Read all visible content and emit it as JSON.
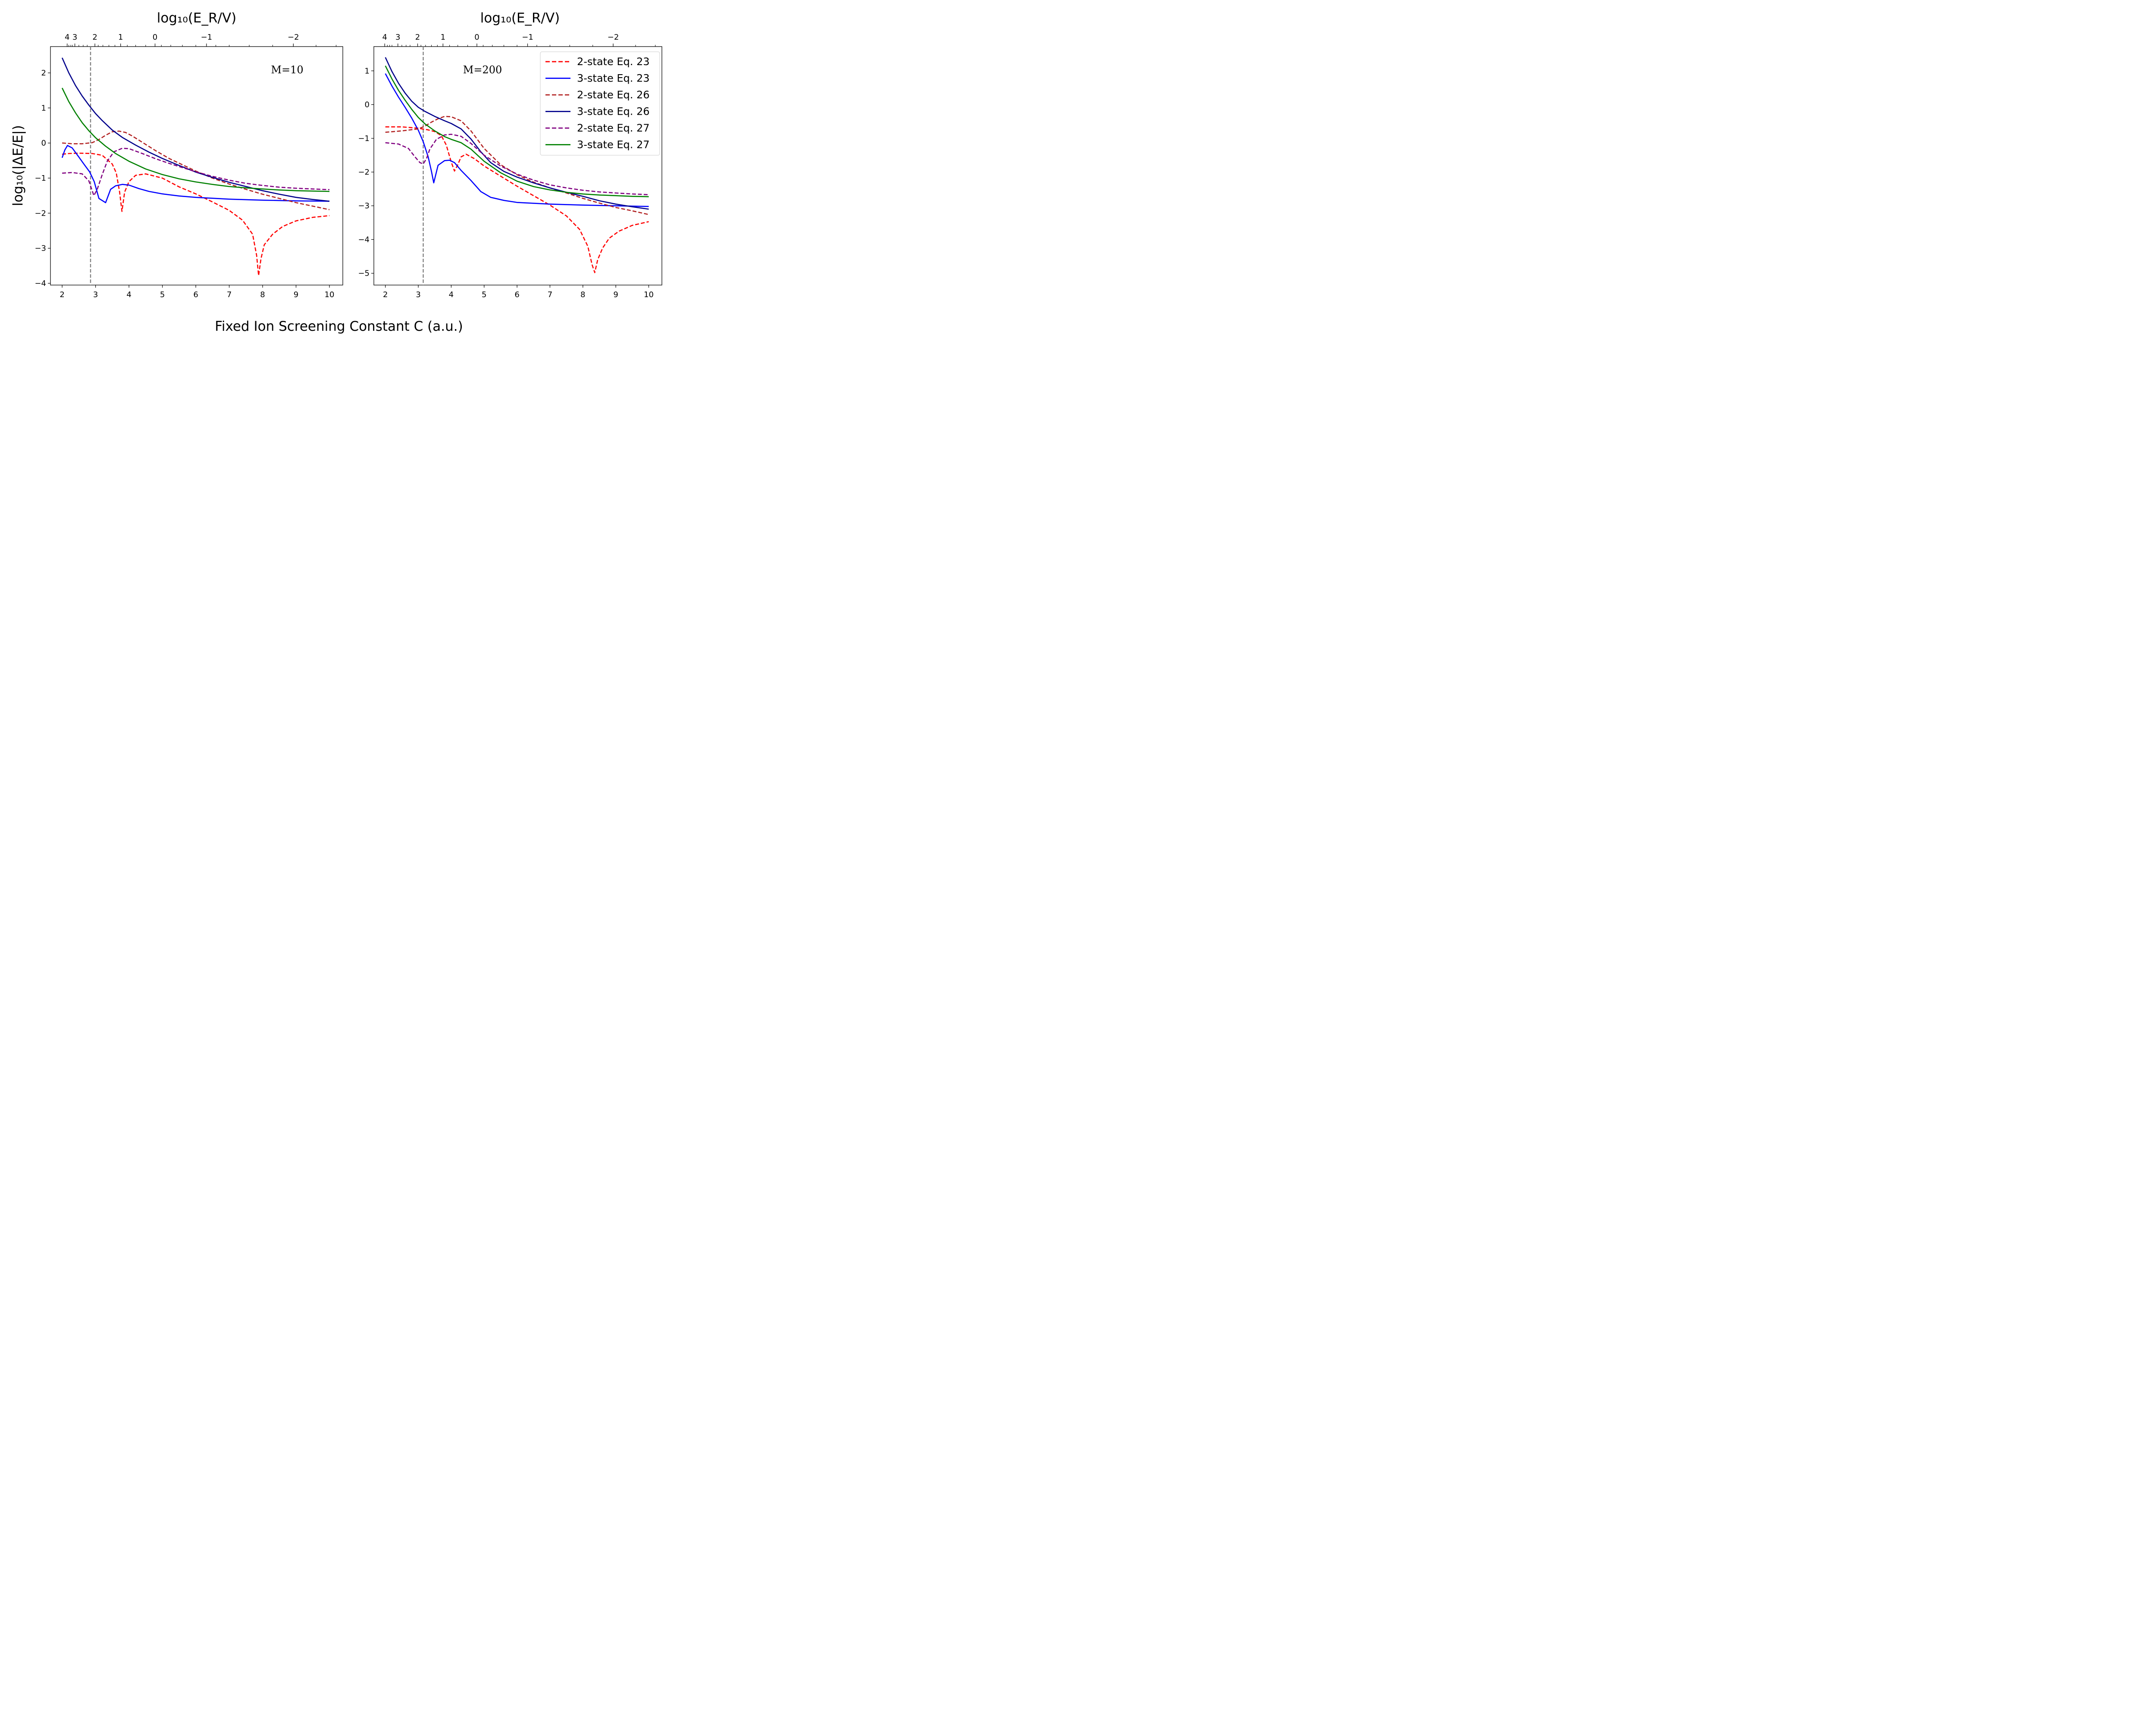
{
  "figure": {
    "xlabel": "Fixed Ion Screening Constant C (a.u.)",
    "ylabel": "log₁₀(|ΔE/E|)",
    "top_xlabel": "log₁₀(E_R/V)"
  },
  "legend": {
    "placement": "upper-right of right panel",
    "entries": [
      {
        "label": "2-state Eq. 23",
        "color": "#ff0000",
        "dash": true
      },
      {
        "label": "3-state Eq. 23",
        "color": "#0000ff",
        "dash": false
      },
      {
        "label": "2-state Eq. 26",
        "color": "#b22222",
        "dash": true
      },
      {
        "label": "3-state Eq. 26",
        "color": "#00008b",
        "dash": false
      },
      {
        "label": "2-state Eq. 27",
        "color": "#800080",
        "dash": true
      },
      {
        "label": "3-state Eq. 27",
        "color": "#008000",
        "dash": false
      }
    ]
  },
  "chart_data": [
    {
      "type": "line",
      "annotation": "M=10",
      "xlim": [
        1.65,
        10.4
      ],
      "ylim": [
        -4.05,
        2.75
      ],
      "xticks": [
        2,
        3,
        4,
        5,
        6,
        7,
        8,
        9,
        10
      ],
      "yticks": [
        -4,
        -3,
        -2,
        -1,
        0,
        1,
        2
      ],
      "vline_x": 2.85,
      "top_axis": {
        "major": [
          {
            "x": 2.15,
            "label": "4"
          },
          {
            "x": 2.38,
            "label": "3"
          },
          {
            "x": 2.98,
            "label": "2"
          },
          {
            "x": 3.75,
            "label": "1"
          },
          {
            "x": 4.78,
            "label": "0"
          },
          {
            "x": 6.32,
            "label": "−1"
          },
          {
            "x": 8.92,
            "label": "−2"
          }
        ],
        "minor": [
          2.2,
          2.26,
          2.31,
          2.5,
          2.63,
          2.75,
          3.08,
          3.22,
          3.4,
          3.58,
          3.95,
          4.2,
          4.5,
          4.97,
          5.25,
          5.6,
          6.0,
          6.6,
          7.0,
          7.6,
          8.3,
          9.6,
          10.2
        ]
      },
      "series": [
        {
          "name": "2-state Eq. 23",
          "color": "#ff0000",
          "dash": true,
          "x": [
            2.0,
            2.2,
            2.5,
            2.9,
            3.2,
            3.5,
            3.62,
            3.72,
            3.79,
            3.87,
            4.0,
            4.2,
            4.5,
            5.0,
            5.5,
            6.0,
            6.5,
            7.0,
            7.4,
            7.7,
            7.82,
            7.88,
            7.95,
            8.05,
            8.3,
            8.6,
            9.0,
            9.5,
            10.0
          ],
          "y": [
            -0.32,
            -0.3,
            -0.29,
            -0.3,
            -0.35,
            -0.6,
            -0.85,
            -1.4,
            -1.95,
            -1.4,
            -1.1,
            -0.92,
            -0.88,
            -1.0,
            -1.25,
            -1.45,
            -1.68,
            -1.92,
            -2.2,
            -2.6,
            -3.2,
            -3.78,
            -3.3,
            -2.9,
            -2.6,
            -2.38,
            -2.22,
            -2.12,
            -2.07
          ]
        },
        {
          "name": "3-state Eq. 23",
          "color": "#0000ff",
          "dash": false,
          "x": [
            2.0,
            2.08,
            2.16,
            2.3,
            2.5,
            2.65,
            2.82,
            2.96,
            3.1,
            3.2,
            3.3,
            3.45,
            3.6,
            3.8,
            4.0,
            4.3,
            4.6,
            5.0,
            5.5,
            6.0,
            7.0,
            8.0,
            9.0,
            10.0
          ],
          "y": [
            -0.42,
            -0.2,
            -0.07,
            -0.14,
            -0.4,
            -0.6,
            -0.82,
            -1.1,
            -1.58,
            -1.64,
            -1.7,
            -1.32,
            -1.22,
            -1.18,
            -1.2,
            -1.3,
            -1.38,
            -1.45,
            -1.51,
            -1.55,
            -1.6,
            -1.63,
            -1.65,
            -1.66
          ]
        },
        {
          "name": "2-state Eq. 26",
          "color": "#b22222",
          "dash": true,
          "x": [
            2.0,
            2.3,
            2.6,
            2.9,
            3.1,
            3.3,
            3.5,
            3.7,
            3.9,
            4.1,
            4.4,
            4.8,
            5.2,
            5.6,
            6.0,
            6.5,
            7.0,
            7.5,
            8.0,
            8.5,
            9.0,
            9.5,
            10.0
          ],
          "y": [
            0.0,
            -0.02,
            -0.02,
            0.01,
            0.1,
            0.22,
            0.32,
            0.34,
            0.3,
            0.2,
            0.02,
            -0.22,
            -0.44,
            -0.62,
            -0.8,
            -1.0,
            -1.17,
            -1.32,
            -1.46,
            -1.58,
            -1.7,
            -1.8,
            -1.9
          ]
        },
        {
          "name": "3-state Eq. 26",
          "color": "#00008b",
          "dash": false,
          "x": [
            2.0,
            2.2,
            2.4,
            2.6,
            2.8,
            3.0,
            3.2,
            3.5,
            3.8,
            4.2,
            4.6,
            5.0,
            5.5,
            6.0,
            6.5,
            7.0,
            7.5,
            8.0,
            8.5,
            9.0,
            9.5,
            10.0
          ],
          "y": [
            2.43,
            2.0,
            1.64,
            1.34,
            1.08,
            0.84,
            0.64,
            0.37,
            0.16,
            -0.06,
            -0.26,
            -0.44,
            -0.64,
            -0.83,
            -0.98,
            -1.12,
            -1.24,
            -1.36,
            -1.46,
            -1.55,
            -1.61,
            -1.66
          ]
        },
        {
          "name": "2-state Eq. 27",
          "color": "#800080",
          "dash": true,
          "x": [
            2.0,
            2.3,
            2.6,
            2.8,
            2.95,
            3.05,
            3.2,
            3.35,
            3.55,
            3.8,
            4.0,
            4.4,
            4.8,
            5.2,
            5.6,
            6.0,
            6.5,
            7.0,
            7.5,
            8.0,
            8.5,
            9.0,
            9.5,
            10.0
          ],
          "y": [
            -0.86,
            -0.84,
            -0.88,
            -1.08,
            -1.5,
            -1.32,
            -0.9,
            -0.52,
            -0.25,
            -0.15,
            -0.16,
            -0.3,
            -0.45,
            -0.58,
            -0.7,
            -0.82,
            -0.95,
            -1.06,
            -1.15,
            -1.21,
            -1.26,
            -1.29,
            -1.31,
            -1.33
          ]
        },
        {
          "name": "3-state Eq. 27",
          "color": "#008000",
          "dash": false,
          "x": [
            2.0,
            2.2,
            2.4,
            2.6,
            2.8,
            3.0,
            3.3,
            3.6,
            4.0,
            4.5,
            5.0,
            5.5,
            6.0,
            6.5,
            7.0,
            7.5,
            8.0,
            8.5,
            9.0,
            9.5,
            10.0
          ],
          "y": [
            1.57,
            1.18,
            0.86,
            0.58,
            0.35,
            0.15,
            -0.09,
            -0.3,
            -0.52,
            -0.74,
            -0.9,
            -1.02,
            -1.11,
            -1.18,
            -1.24,
            -1.28,
            -1.31,
            -1.34,
            -1.36,
            -1.37,
            -1.38
          ]
        }
      ]
    },
    {
      "type": "line",
      "annotation": "M=200",
      "xlim": [
        1.65,
        10.4
      ],
      "ylim": [
        -5.35,
        1.72
      ],
      "xticks": [
        2,
        3,
        4,
        5,
        6,
        7,
        8,
        9,
        10
      ],
      "yticks": [
        -5,
        -4,
        -3,
        -2,
        -1,
        0,
        1
      ],
      "vline_x": 3.15,
      "top_axis": {
        "major": [
          {
            "x": 1.98,
            "label": "4"
          },
          {
            "x": 2.38,
            "label": "3"
          },
          {
            "x": 2.98,
            "label": "2"
          },
          {
            "x": 3.75,
            "label": "1"
          },
          {
            "x": 4.78,
            "label": "0"
          },
          {
            "x": 6.32,
            "label": "−1"
          },
          {
            "x": 8.92,
            "label": "−2"
          }
        ],
        "minor": [
          2.06,
          2.13,
          2.2,
          2.5,
          2.63,
          2.75,
          3.08,
          3.22,
          3.4,
          3.58,
          3.95,
          4.2,
          4.5,
          4.97,
          5.25,
          5.6,
          6.0,
          6.6,
          7.0,
          7.6,
          8.3,
          9.6,
          10.2
        ]
      },
      "series": [
        {
          "name": "2-state Eq. 23",
          "color": "#ff0000",
          "dash": true,
          "x": [
            2.0,
            2.5,
            3.0,
            3.3,
            3.5,
            3.7,
            3.85,
            4.0,
            4.1,
            4.2,
            4.3,
            4.45,
            4.7,
            5.0,
            5.5,
            6.0,
            6.5,
            7.0,
            7.5,
            7.9,
            8.15,
            8.28,
            8.36,
            8.45,
            8.6,
            8.8,
            9.1,
            9.5,
            10.0
          ],
          "y": [
            -0.66,
            -0.66,
            -0.7,
            -0.75,
            -0.8,
            -0.92,
            -1.2,
            -1.7,
            -1.97,
            -1.78,
            -1.55,
            -1.47,
            -1.6,
            -1.82,
            -2.12,
            -2.42,
            -2.7,
            -2.98,
            -3.3,
            -3.7,
            -4.2,
            -4.75,
            -4.98,
            -4.6,
            -4.25,
            -3.96,
            -3.75,
            -3.58,
            -3.47
          ]
        },
        {
          "name": "3-state Eq. 23",
          "color": "#0000ff",
          "dash": false,
          "x": [
            2.0,
            2.2,
            2.4,
            2.6,
            2.8,
            3.0,
            3.15,
            3.3,
            3.4,
            3.47,
            3.6,
            3.8,
            3.95,
            4.1,
            4.3,
            4.6,
            4.9,
            5.2,
            5.6,
            6.0,
            7.0,
            8.0,
            9.0,
            10.0
          ],
          "y": [
            0.92,
            0.55,
            0.22,
            -0.08,
            -0.4,
            -0.76,
            -1.1,
            -1.55,
            -1.98,
            -2.32,
            -1.8,
            -1.66,
            -1.65,
            -1.72,
            -1.95,
            -2.25,
            -2.58,
            -2.75,
            -2.84,
            -2.9,
            -2.95,
            -2.98,
            -3.0,
            -3.02
          ]
        },
        {
          "name": "2-state Eq. 26",
          "color": "#b22222",
          "dash": true,
          "x": [
            2.0,
            2.5,
            3.0,
            3.2,
            3.4,
            3.6,
            3.8,
            4.0,
            4.3,
            4.6,
            5.0,
            5.5,
            6.0,
            6.5,
            7.0,
            7.5,
            8.0,
            8.5,
            9.0,
            9.5,
            10.0
          ],
          "y": [
            -0.82,
            -0.78,
            -0.72,
            -0.64,
            -0.52,
            -0.42,
            -0.35,
            -0.36,
            -0.48,
            -0.78,
            -1.3,
            -1.78,
            -2.08,
            -2.3,
            -2.47,
            -2.62,
            -2.78,
            -2.92,
            -3.05,
            -3.15,
            -3.26
          ]
        },
        {
          "name": "3-state Eq. 26",
          "color": "#00008b",
          "dash": false,
          "x": [
            2.0,
            2.2,
            2.4,
            2.6,
            2.8,
            3.0,
            3.2,
            3.5,
            3.8,
            4.0,
            4.3,
            4.6,
            4.9,
            5.2,
            5.6,
            6.0,
            6.5,
            7.0,
            7.5,
            8.0,
            8.5,
            9.0,
            9.5,
            10.0
          ],
          "y": [
            1.4,
            0.98,
            0.63,
            0.34,
            0.1,
            -0.08,
            -0.2,
            -0.35,
            -0.48,
            -0.56,
            -0.72,
            -1.02,
            -1.4,
            -1.72,
            -1.98,
            -2.15,
            -2.32,
            -2.47,
            -2.6,
            -2.72,
            -2.85,
            -2.95,
            -3.03,
            -3.1
          ]
        },
        {
          "name": "2-state Eq. 27",
          "color": "#800080",
          "dash": true,
          "x": [
            2.0,
            2.4,
            2.7,
            2.9,
            3.05,
            3.15,
            3.25,
            3.35,
            3.55,
            3.8,
            4.0,
            4.3,
            4.6,
            5.0,
            5.5,
            6.0,
            6.5,
            7.0,
            7.5,
            8.0,
            8.5,
            9.0,
            9.5,
            10.0
          ],
          "y": [
            -1.13,
            -1.17,
            -1.3,
            -1.55,
            -1.72,
            -1.76,
            -1.6,
            -1.32,
            -1.03,
            -0.9,
            -0.88,
            -0.94,
            -1.15,
            -1.5,
            -1.82,
            -2.06,
            -2.24,
            -2.38,
            -2.47,
            -2.54,
            -2.59,
            -2.62,
            -2.65,
            -2.67
          ]
        },
        {
          "name": "3-state Eq. 27",
          "color": "#008000",
          "dash": false,
          "x": [
            2.0,
            2.2,
            2.4,
            2.6,
            2.8,
            3.0,
            3.2,
            3.5,
            3.8,
            4.0,
            4.3,
            4.6,
            5.0,
            5.5,
            6.0,
            6.5,
            7.0,
            7.5,
            8.0,
            8.5,
            9.0,
            9.5,
            10.0
          ],
          "y": [
            1.15,
            0.76,
            0.42,
            0.13,
            -0.14,
            -0.38,
            -0.57,
            -0.78,
            -0.95,
            -1.03,
            -1.13,
            -1.32,
            -1.68,
            -2.02,
            -2.27,
            -2.43,
            -2.53,
            -2.6,
            -2.65,
            -2.68,
            -2.7,
            -2.72,
            -2.73
          ]
        }
      ]
    }
  ]
}
